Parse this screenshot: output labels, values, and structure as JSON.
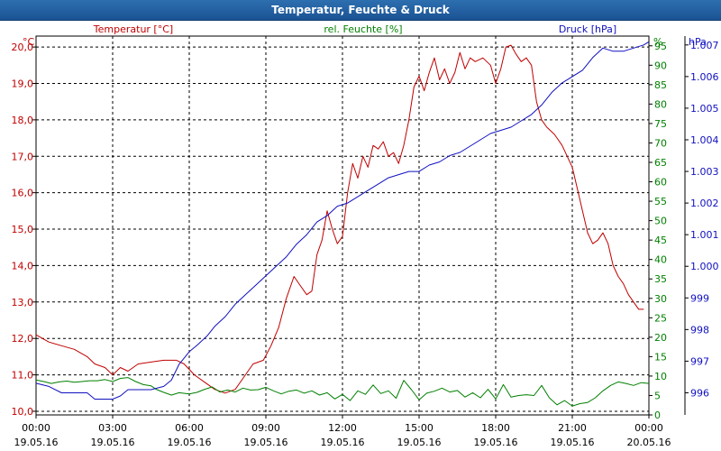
{
  "chart_data": {
    "type": "line",
    "title": "Temperatur, Feuchte & Druck",
    "x": {
      "ticks": [
        {
          "time": "00:00",
          "date": "19.05.16"
        },
        {
          "time": "03:00",
          "date": "19.05.16"
        },
        {
          "time": "06:00",
          "date": "19.05.16"
        },
        {
          "time": "09:00",
          "date": "19.05.16"
        },
        {
          "time": "12:00",
          "date": "19.05.16"
        },
        {
          "time": "15:00",
          "date": "19.05.16"
        },
        {
          "time": "18:00",
          "date": "19.05.16"
        },
        {
          "time": "21:00",
          "date": "19.05.16"
        },
        {
          "time": "00:00",
          "date": "20.05.16"
        }
      ],
      "range_hours": [
        0,
        24
      ]
    },
    "axes": {
      "temperature": {
        "label": "Temperatur [°C]",
        "unit": "°C",
        "range": [
          9.9,
          20.3
        ],
        "ticks": [
          "10,0",
          "11,0",
          "12,0",
          "13,0",
          "14,0",
          "15,0",
          "16,0",
          "17,0",
          "18,0",
          "19,0",
          "20,0"
        ],
        "color": "#c00000"
      },
      "humidity": {
        "label": "rel. Feuchte [%]",
        "unit": "%",
        "range": [
          0,
          97.5
        ],
        "ticks": [
          "0",
          "5",
          "10",
          "15",
          "20",
          "25",
          "30",
          "35",
          "40",
          "45",
          "50",
          "55",
          "60",
          "65",
          "70",
          "75",
          "80",
          "85",
          "90",
          "95"
        ],
        "color": "#008000"
      },
      "pressure": {
        "label": "Druck [hPa]",
        "unit": "hPa",
        "range": [
          995.3,
          1007.28
        ],
        "ticks": [
          "996",
          "997",
          "998",
          "999",
          "1.000",
          "1.001",
          "1.002",
          "1.003",
          "1.004",
          "1.005",
          "1.006",
          "1.007"
        ],
        "color": "#1010c0"
      }
    },
    "series": [
      {
        "name": "Temperatur [°C]",
        "axis": "temperature",
        "color": "#c00000",
        "points": [
          [
            0,
            12.1
          ],
          [
            0.5,
            11.9
          ],
          [
            1,
            11.8
          ],
          [
            1.5,
            11.7
          ],
          [
            2,
            11.5
          ],
          [
            2.3,
            11.3
          ],
          [
            2.7,
            11.2
          ],
          [
            3,
            11.0
          ],
          [
            3.3,
            11.2
          ],
          [
            3.6,
            11.1
          ],
          [
            4,
            11.3
          ],
          [
            4.5,
            11.35
          ],
          [
            5,
            11.4
          ],
          [
            5.5,
            11.4
          ],
          [
            5.8,
            11.3
          ],
          [
            6.2,
            11.0
          ],
          [
            6.6,
            10.8
          ],
          [
            7,
            10.6
          ],
          [
            7.4,
            10.5
          ],
          [
            7.8,
            10.6
          ],
          [
            8.1,
            10.9
          ],
          [
            8.5,
            11.3
          ],
          [
            8.9,
            11.4
          ],
          [
            9.2,
            11.8
          ],
          [
            9.5,
            12.3
          ],
          [
            9.8,
            13.1
          ],
          [
            10.1,
            13.7
          ],
          [
            10.3,
            13.5
          ],
          [
            10.6,
            13.2
          ],
          [
            10.8,
            13.3
          ],
          [
            11,
            14.3
          ],
          [
            11.2,
            14.7
          ],
          [
            11.4,
            15.5
          ],
          [
            11.6,
            15.0
          ],
          [
            11.8,
            14.6
          ],
          [
            12,
            14.8
          ],
          [
            12.2,
            16.0
          ],
          [
            12.4,
            16.8
          ],
          [
            12.6,
            16.4
          ],
          [
            12.8,
            17.0
          ],
          [
            13,
            16.7
          ],
          [
            13.2,
            17.3
          ],
          [
            13.4,
            17.2
          ],
          [
            13.6,
            17.4
          ],
          [
            13.8,
            17.0
          ],
          [
            14,
            17.1
          ],
          [
            14.2,
            16.8
          ],
          [
            14.4,
            17.3
          ],
          [
            14.6,
            18.0
          ],
          [
            14.8,
            18.9
          ],
          [
            15,
            19.2
          ],
          [
            15.2,
            18.8
          ],
          [
            15.4,
            19.3
          ],
          [
            15.6,
            19.7
          ],
          [
            15.8,
            19.1
          ],
          [
            16,
            19.4
          ],
          [
            16.2,
            19.0
          ],
          [
            16.4,
            19.3
          ],
          [
            16.6,
            19.85
          ],
          [
            16.8,
            19.4
          ],
          [
            17,
            19.7
          ],
          [
            17.2,
            19.6
          ],
          [
            17.5,
            19.7
          ],
          [
            17.8,
            19.5
          ],
          [
            18,
            19.0
          ],
          [
            18.2,
            19.4
          ],
          [
            18.4,
            20.0
          ],
          [
            18.6,
            20.05
          ],
          [
            18.8,
            19.8
          ],
          [
            19,
            19.6
          ],
          [
            19.2,
            19.7
          ],
          [
            19.4,
            19.5
          ],
          [
            19.6,
            18.5
          ],
          [
            19.8,
            18.0
          ],
          [
            20,
            17.8
          ],
          [
            20.3,
            17.6
          ],
          [
            20.6,
            17.3
          ],
          [
            21,
            16.7
          ],
          [
            21.2,
            16.1
          ],
          [
            21.4,
            15.5
          ],
          [
            21.6,
            14.9
          ],
          [
            21.8,
            14.6
          ],
          [
            22,
            14.7
          ],
          [
            22.2,
            14.9
          ],
          [
            22.4,
            14.6
          ],
          [
            22.6,
            14.0
          ],
          [
            22.8,
            13.7
          ],
          [
            23,
            13.5
          ],
          [
            23.2,
            13.2
          ],
          [
            23.4,
            13.0
          ],
          [
            23.6,
            12.8
          ],
          [
            23.8,
            12.8
          ]
        ]
      },
      {
        "name": "rel. Feuchte [%]",
        "axis": "humidity",
        "color": "#008000",
        "points": [
          [
            0,
            9.0
          ],
          [
            0.3,
            8.6
          ],
          [
            0.6,
            8.1
          ],
          [
            0.9,
            8.5
          ],
          [
            1.2,
            8.7
          ],
          [
            1.5,
            8.4
          ],
          [
            1.8,
            8.6
          ],
          [
            2.1,
            8.8
          ],
          [
            2.4,
            8.8
          ],
          [
            2.7,
            9.1
          ],
          [
            3,
            8.6
          ],
          [
            3.3,
            9.4
          ],
          [
            3.6,
            9.6
          ],
          [
            3.9,
            8.6
          ],
          [
            4.2,
            7.8
          ],
          [
            4.5,
            7.5
          ],
          [
            4.7,
            6.6
          ],
          [
            5,
            5.8
          ],
          [
            5.3,
            5.1
          ],
          [
            5.6,
            5.7
          ],
          [
            6,
            5.4
          ],
          [
            6.3,
            5.8
          ],
          [
            6.6,
            6.6
          ],
          [
            6.9,
            7.2
          ],
          [
            7.2,
            5.9
          ],
          [
            7.5,
            6.4
          ],
          [
            7.8,
            5.9
          ],
          [
            8.1,
            6.9
          ],
          [
            8.4,
            6.4
          ],
          [
            8.7,
            6.5
          ],
          [
            9,
            7.1
          ],
          [
            9.3,
            6.2
          ],
          [
            9.6,
            5.4
          ],
          [
            9.9,
            6.1
          ],
          [
            10.2,
            6.4
          ],
          [
            10.5,
            5.6
          ],
          [
            10.8,
            6.2
          ],
          [
            11.1,
            5.1
          ],
          [
            11.4,
            5.7
          ],
          [
            11.7,
            4.1
          ],
          [
            12,
            5.3
          ],
          [
            12.3,
            3.7
          ],
          [
            12.6,
            6.2
          ],
          [
            12.9,
            5.3
          ],
          [
            13.2,
            7.7
          ],
          [
            13.5,
            5.5
          ],
          [
            13.8,
            6.2
          ],
          [
            14.1,
            4.3
          ],
          [
            14.4,
            8.9
          ],
          [
            14.7,
            6.5
          ],
          [
            15,
            3.9
          ],
          [
            15.3,
            5.6
          ],
          [
            15.6,
            6.1
          ],
          [
            15.9,
            6.9
          ],
          [
            16.2,
            5.9
          ],
          [
            16.5,
            6.3
          ],
          [
            16.8,
            4.6
          ],
          [
            17.1,
            5.7
          ],
          [
            17.4,
            4.4
          ],
          [
            17.7,
            6.6
          ],
          [
            18,
            4.1
          ],
          [
            18.3,
            7.8
          ],
          [
            18.6,
            4.6
          ],
          [
            18.9,
            5.0
          ],
          [
            19.2,
            5.2
          ],
          [
            19.5,
            5.0
          ],
          [
            19.8,
            7.6
          ],
          [
            20.1,
            4.4
          ],
          [
            20.4,
            2.6
          ],
          [
            20.7,
            3.7
          ],
          [
            21,
            2.3
          ],
          [
            21.3,
            2.9
          ],
          [
            21.6,
            3.2
          ],
          [
            21.9,
            4.4
          ],
          [
            22.2,
            6.2
          ],
          [
            22.5,
            7.6
          ],
          [
            22.8,
            8.5
          ],
          [
            23.1,
            8.1
          ],
          [
            23.4,
            7.6
          ],
          [
            23.7,
            8.3
          ],
          [
            24,
            8.1
          ]
        ]
      },
      {
        "name": "Druck [hPa]",
        "axis": "pressure",
        "color": "#1010c0",
        "points": [
          [
            0,
            996.3
          ],
          [
            0.5,
            996.2
          ],
          [
            1,
            996.0
          ],
          [
            1.5,
            996.0
          ],
          [
            2,
            996.0
          ],
          [
            2.3,
            995.8
          ],
          [
            2.6,
            995.8
          ],
          [
            3,
            995.8
          ],
          [
            3.3,
            995.9
          ],
          [
            3.6,
            996.1
          ],
          [
            4,
            996.1
          ],
          [
            4.5,
            996.1
          ],
          [
            5,
            996.2
          ],
          [
            5.3,
            996.4
          ],
          [
            5.6,
            996.9
          ],
          [
            6,
            997.3
          ],
          [
            6.3,
            997.5
          ],
          [
            6.7,
            997.8
          ],
          [
            7,
            998.1
          ],
          [
            7.4,
            998.4
          ],
          [
            7.8,
            998.8
          ],
          [
            8.2,
            999.1
          ],
          [
            8.6,
            999.4
          ],
          [
            9,
            999.7
          ],
          [
            9.4,
            1000.0
          ],
          [
            9.8,
            1000.3
          ],
          [
            10.2,
            1000.7
          ],
          [
            10.6,
            1001.0
          ],
          [
            11,
            1001.4
          ],
          [
            11.4,
            1001.6
          ],
          [
            11.8,
            1001.9
          ],
          [
            12.2,
            1002.0
          ],
          [
            12.6,
            1002.2
          ],
          [
            13,
            1002.4
          ],
          [
            13.4,
            1002.6
          ],
          [
            13.8,
            1002.8
          ],
          [
            14.2,
            1002.9
          ],
          [
            14.6,
            1003.0
          ],
          [
            15,
            1003.0
          ],
          [
            15.4,
            1003.2
          ],
          [
            15.8,
            1003.3
          ],
          [
            16.2,
            1003.5
          ],
          [
            16.6,
            1003.6
          ],
          [
            17,
            1003.8
          ],
          [
            17.4,
            1004.0
          ],
          [
            17.8,
            1004.2
          ],
          [
            18.2,
            1004.3
          ],
          [
            18.6,
            1004.4
          ],
          [
            19,
            1004.6
          ],
          [
            19.4,
            1004.8
          ],
          [
            19.8,
            1005.1
          ],
          [
            20.2,
            1005.5
          ],
          [
            20.6,
            1005.8
          ],
          [
            21,
            1006.0
          ],
          [
            21.4,
            1006.2
          ],
          [
            21.8,
            1006.6
          ],
          [
            22.2,
            1006.9
          ],
          [
            22.6,
            1006.8
          ],
          [
            23,
            1006.8
          ],
          [
            23.4,
            1006.9
          ],
          [
            23.8,
            1007.0
          ],
          [
            24,
            1007.1
          ]
        ]
      }
    ]
  }
}
